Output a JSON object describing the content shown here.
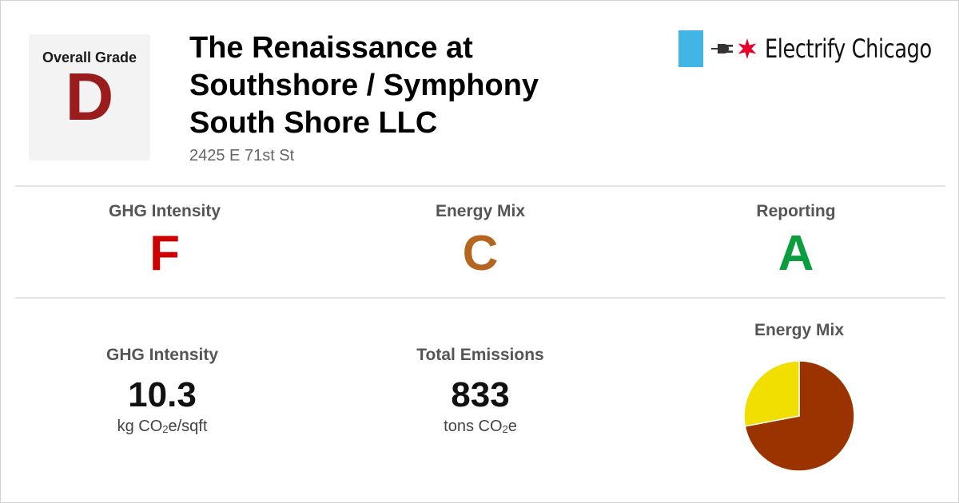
{
  "overall": {
    "label": "Overall Grade",
    "grade": "D",
    "color": "#9b1c1c"
  },
  "building": {
    "name": "The Renaissance at Southshore / Symphony South Shore LLC",
    "address": "2425 E 71st St"
  },
  "logo": {
    "text": "Electrify Chicago",
    "stripe_color": "#41b6e6",
    "star_color": "#e4002b"
  },
  "grades": [
    {
      "label": "GHG Intensity",
      "grade": "F",
      "color": "#cc0000"
    },
    {
      "label": "Energy Mix",
      "grade": "C",
      "color": "#b5651d"
    },
    {
      "label": "Reporting",
      "grade": "A",
      "color": "#0a9e3f"
    }
  ],
  "stats": {
    "ghg": {
      "label": "GHG Intensity",
      "value": "10.3",
      "unit_pre": "kg CO",
      "unit_sub": "2",
      "unit_post": "e/sqft"
    },
    "total": {
      "label": "Total Emissions",
      "value": "833",
      "unit_pre": "tons CO",
      "unit_sub": "2",
      "unit_post": "e"
    }
  },
  "energy_mix": {
    "label": "Energy Mix",
    "slices": [
      {
        "value": 0.72,
        "color": "#9a3300"
      },
      {
        "value": 0.28,
        "color": "#f0df00"
      }
    ]
  }
}
